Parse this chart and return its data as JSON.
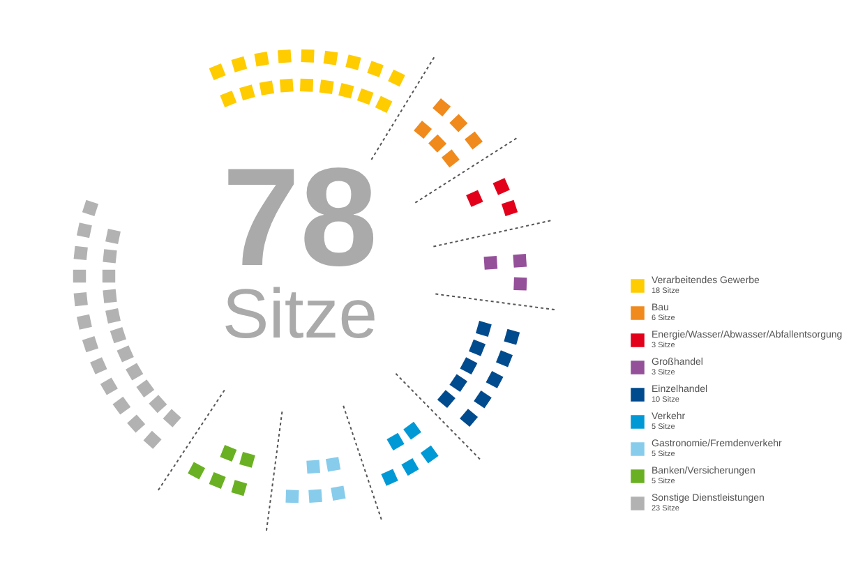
{
  "chart_data": {
    "type": "other",
    "title": "78",
    "subtitle": "Sitze",
    "categories": [
      "Verarbeitendes Gewerbe",
      "Bau",
      "Energie/Wasser/Abwasser/Abfallentsorgung",
      "Großhandel",
      "Einzelhandel",
      "Verkehr",
      "Gastronomie/Fremdenverkehr",
      "Banken/Versicherungen",
      "Sonstige Dienstleistungen"
    ],
    "values": [
      18,
      6,
      3,
      3,
      10,
      5,
      5,
      5,
      23
    ],
    "value_labels": [
      "18 Sitze",
      "6 Sitze",
      "3 Sitze",
      "3 Sitze",
      "10 Sitze",
      "5 Sitze",
      "5 Sitze",
      "5 Sitze",
      "23 Sitze"
    ],
    "colors": [
      "#ffcc00",
      "#f08a1c",
      "#e2001a",
      "#95509a",
      "#004b8d",
      "#0099d6",
      "#88ccec",
      "#6ab023",
      "#b2b2b2"
    ]
  }
}
